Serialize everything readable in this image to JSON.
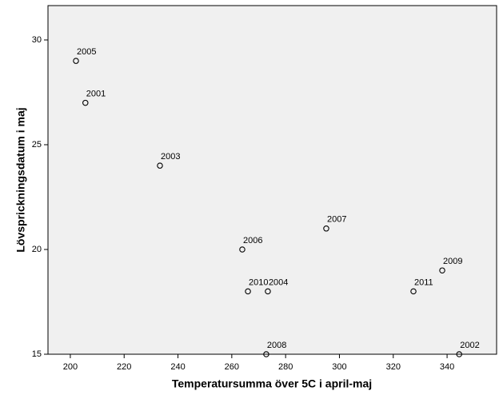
{
  "chart_data": {
    "type": "scatter",
    "x_label": "Temperatursumma över 5C i april-maj",
    "y_label": "Lövsprickningsdatum i maj",
    "labels": [
      "2005",
      "2001",
      "2003",
      "2006",
      "2010",
      "2004",
      "2008",
      "2007",
      "2011",
      "2009",
      "2002"
    ],
    "x": [
      202.1,
      205.6,
      233.3,
      263.9,
      266,
      273.4,
      272.8,
      295.1,
      327.5,
      338.2,
      344.5
    ],
    "y": [
      29,
      27,
      24,
      20,
      18,
      18,
      15,
      21,
      18,
      19,
      15
    ],
    "color": "#000000",
    "xlim": [
      191.7,
      358.4
    ],
    "ylim": [
      15,
      31.64
    ],
    "xticks": [
      200,
      220,
      240,
      260,
      280,
      300,
      320,
      340
    ],
    "yticks": [
      15,
      20,
      25,
      30
    ]
  }
}
